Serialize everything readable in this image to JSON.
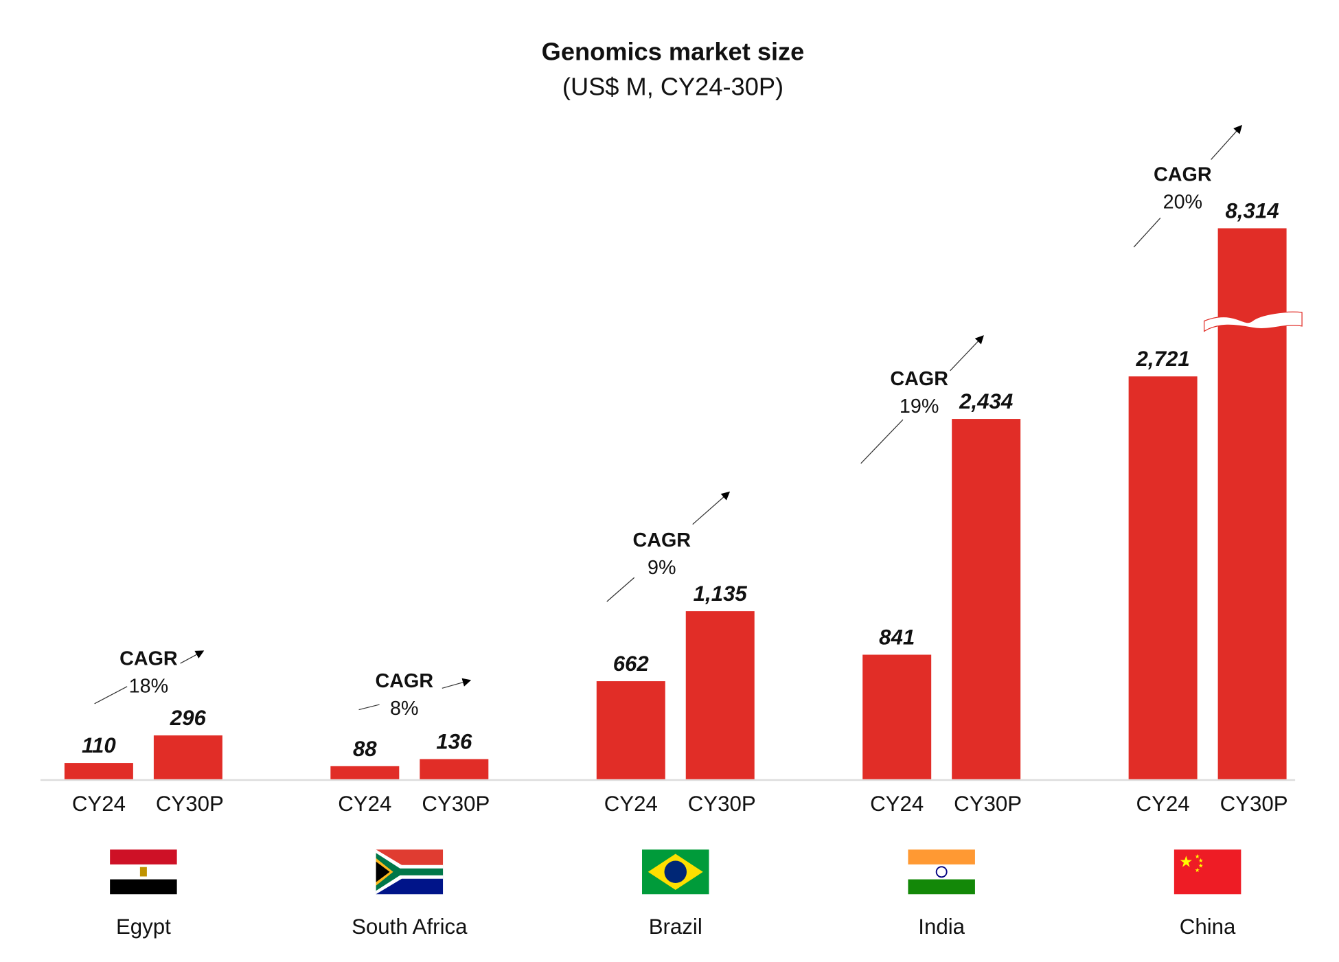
{
  "chart_data": {
    "type": "bar",
    "title": "Genomics market size",
    "subtitle": "(US$ M, CY24-30P)",
    "xlabel": "",
    "ylabel": "",
    "series_labels": [
      "CY24",
      "CY30P"
    ],
    "groups": [
      {
        "country": "Egypt",
        "values": [
          110,
          296
        ],
        "value_labels": [
          "110",
          "296"
        ],
        "cagr_label": "CAGR",
        "cagr": "18%"
      },
      {
        "country": "South Africa",
        "values": [
          88,
          136
        ],
        "value_labels": [
          "88",
          "136"
        ],
        "cagr_label": "CAGR",
        "cagr": "8%"
      },
      {
        "country": "Brazil",
        "values": [
          662,
          1135
        ],
        "value_labels": [
          "662",
          "1,135"
        ],
        "cagr_label": "CAGR",
        "cagr": "9%"
      },
      {
        "country": "India",
        "values": [
          841,
          2434
        ],
        "value_labels": [
          "841",
          "2,434"
        ],
        "cagr_label": "CAGR",
        "cagr": "19%"
      },
      {
        "country": "China",
        "values": [
          2721,
          8314
        ],
        "value_labels": [
          "2,721",
          "8,314"
        ],
        "cagr_label": "CAGR",
        "cagr": "20%",
        "axis_break_on": "CY30P"
      }
    ],
    "bar_color": "#E12D27",
    "grid": false,
    "legend": "none"
  }
}
